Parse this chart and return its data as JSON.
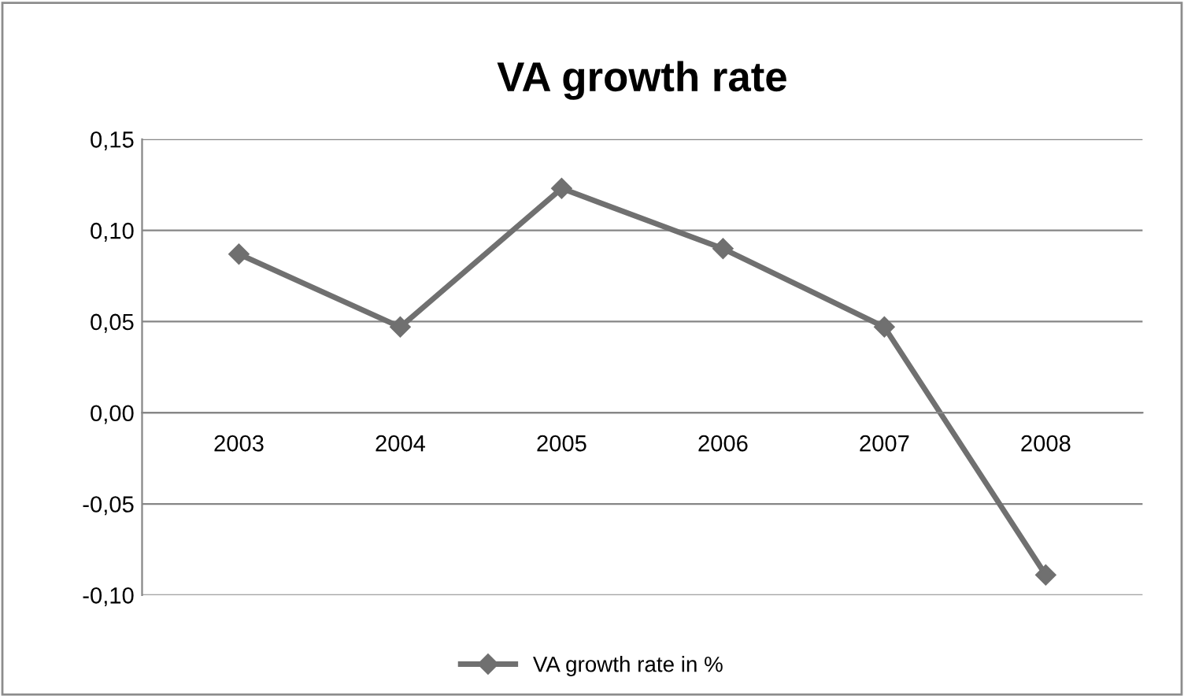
{
  "chart_data": {
    "type": "line",
    "title": "VA growth rate",
    "categories": [
      "2003",
      "2004",
      "2005",
      "2006",
      "2007",
      "2008"
    ],
    "series": [
      {
        "name": "VA growth rate in %",
        "color": "#707070",
        "values": [
          0.087,
          0.047,
          0.123,
          0.09,
          0.047,
          -0.089
        ]
      }
    ],
    "ylim": [
      -0.1,
      0.15
    ],
    "yticks": [
      {
        "value": -0.1,
        "label": "-0,10"
      },
      {
        "value": -0.05,
        "label": "-0,05"
      },
      {
        "value": 0,
        "label": "0,00"
      },
      {
        "value": 0.05,
        "label": "0,05"
      },
      {
        "value": 0.1,
        "label": "0,10"
      },
      {
        "value": 0.15,
        "label": "0,15"
      }
    ],
    "grid": "y",
    "legend": "bottom",
    "marker": "diamond",
    "line_style": "solid"
  }
}
